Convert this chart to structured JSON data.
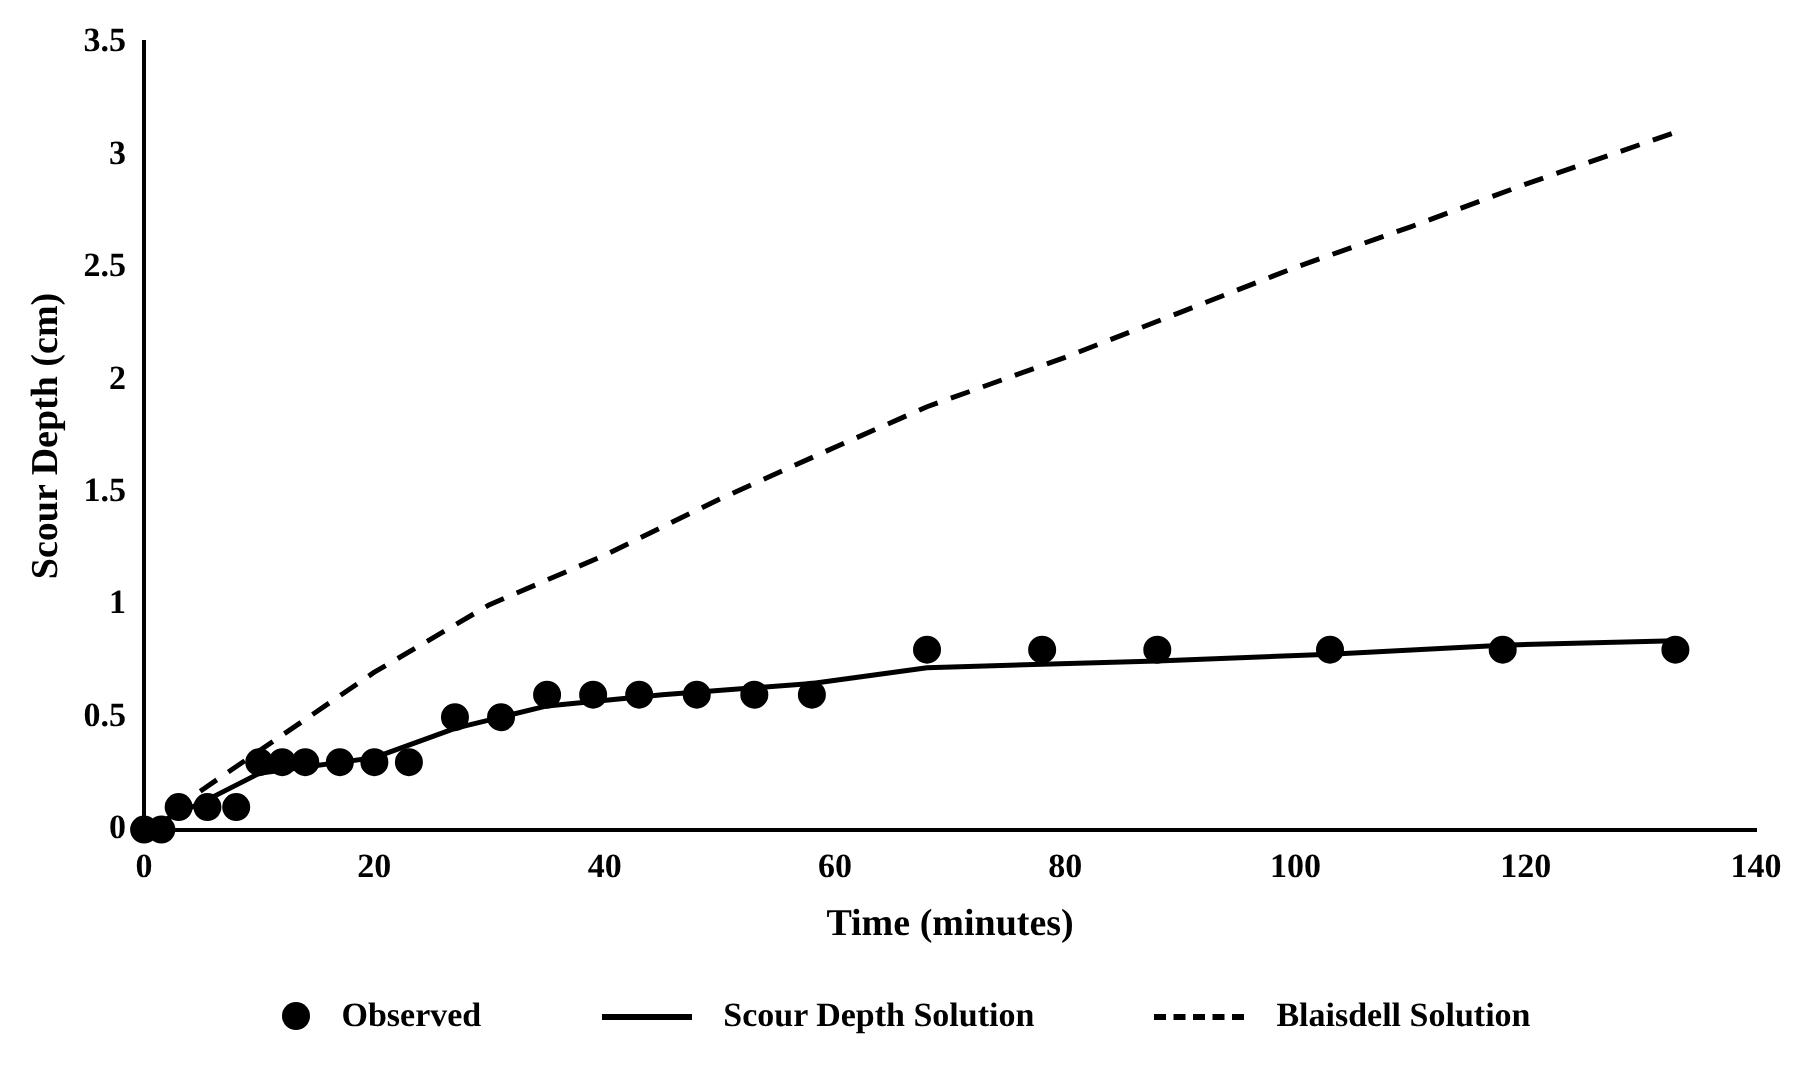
{
  "chart_data": {
    "type": "scatter",
    "xlabel": "Time (minutes)",
    "ylabel": "Scour Depth (cm)",
    "xlim": [
      0,
      140
    ],
    "xticks": [
      0,
      20,
      40,
      60,
      80,
      100,
      120,
      140
    ],
    "ylim": [
      0,
      3.5
    ],
    "yticks": [
      0,
      0.5,
      1,
      1.5,
      2,
      2.5,
      3,
      3.5
    ],
    "grid": false,
    "legend": "bottom",
    "series": [
      {
        "name": "Observed",
        "type": "scatter",
        "marker": "circle",
        "color": "#000000",
        "x": [
          0,
          1.5,
          3,
          5.5,
          8,
          10,
          12,
          14,
          17,
          20,
          23,
          27,
          31,
          35,
          39,
          43,
          48,
          53,
          58,
          68,
          78,
          88,
          103,
          118,
          133
        ],
        "values": [
          0,
          0,
          0.1,
          0.1,
          0.1,
          0.3,
          0.3,
          0.3,
          0.3,
          0.3,
          0.3,
          0.5,
          0.5,
          0.6,
          0.6,
          0.6,
          0.6,
          0.6,
          0.6,
          0.8,
          0.8,
          0.8,
          0.8,
          0.8,
          0.8
        ]
      },
      {
        "name": "Scour Depth Solution",
        "type": "line",
        "marker": "none",
        "line_style": "solid",
        "color": "#000000",
        "x": [
          0,
          5,
          10,
          20,
          27,
          35,
          45,
          58,
          68,
          88,
          103,
          118,
          133
        ],
        "values": [
          0,
          0.12,
          0.25,
          0.32,
          0.45,
          0.55,
          0.6,
          0.65,
          0.72,
          0.75,
          0.78,
          0.82,
          0.84
        ]
      },
      {
        "name": "Blaisdell Solution",
        "type": "line",
        "marker": "none",
        "line_style": "dashed",
        "color": "#000000",
        "x": [
          0,
          10,
          20,
          30,
          40,
          50,
          60,
          68,
          80,
          90,
          100,
          110,
          120,
          133
        ],
        "values": [
          0,
          0.35,
          0.7,
          1.0,
          1.22,
          1.47,
          1.7,
          1.88,
          2.1,
          2.3,
          2.5,
          2.68,
          2.87,
          3.1
        ]
      }
    ]
  }
}
